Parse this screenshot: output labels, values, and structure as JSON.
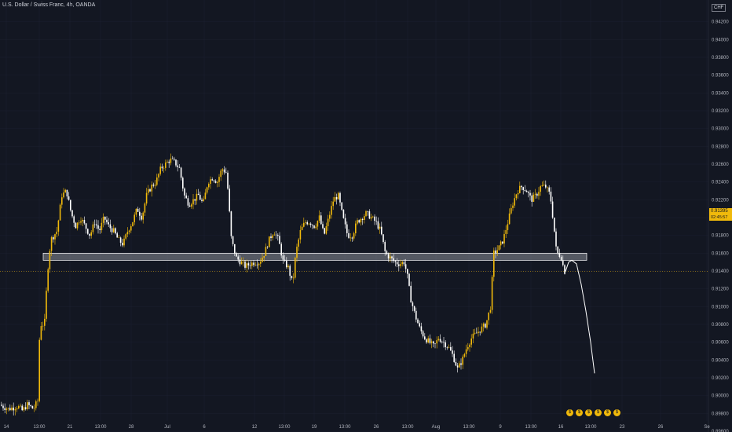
{
  "header": {
    "title": "U.S. Dollar / Swiss Franc, 4h, OANDA"
  },
  "axis": {
    "currency": "CHF"
  },
  "last_price": {
    "value": "0.91395",
    "countdown": "02:45:57"
  },
  "colors": {
    "bg": "#131722",
    "up": "#f0b90b",
    "down": "#ffffff",
    "grid": "#1c2030",
    "zone_fill": "#d1d4dc",
    "zone_stroke": "#ffffff"
  },
  "chart_data": {
    "type": "candlestick",
    "ylim": [
      0.896,
      0.944
    ],
    "y_ticks": [
      0.942,
      0.94,
      0.938,
      0.936,
      0.934,
      0.932,
      0.93,
      0.928,
      0.926,
      0.924,
      0.922,
      0.92,
      0.918,
      0.916,
      0.914,
      0.912,
      0.91,
      0.908,
      0.906,
      0.904,
      0.902,
      0.9,
      0.898,
      0.896
    ],
    "x_ticks": [
      "14",
      "13:00",
      "21",
      "13:00",
      "28",
      "Jul",
      "6",
      "12",
      "13:00",
      "19",
      "13:00",
      "26",
      "13:00",
      "Aug",
      "13:00",
      "9",
      "13:00",
      "16",
      "13:00",
      "23",
      "26",
      "Se"
    ],
    "zone": {
      "from": 0.9152,
      "to": 0.916
    },
    "last_price": 0.91395,
    "anchors": [
      [
        0,
        0.899
      ],
      [
        12,
        0.8985
      ],
      [
        24,
        0.8988
      ],
      [
        30,
        0.8983
      ],
      [
        36,
        0.899
      ],
      [
        44,
        0.8985
      ],
      [
        50,
        0.8995
      ],
      [
        52,
        0.908
      ],
      [
        58,
        0.908
      ],
      [
        62,
        0.914
      ],
      [
        66,
        0.9175
      ],
      [
        74,
        0.9185
      ],
      [
        80,
        0.9225
      ],
      [
        86,
        0.923
      ],
      [
        92,
        0.9205
      ],
      [
        98,
        0.919
      ],
      [
        104,
        0.92
      ],
      [
        110,
        0.919
      ],
      [
        116,
        0.918
      ],
      [
        122,
        0.9195
      ],
      [
        128,
        0.9185
      ],
      [
        134,
        0.92
      ],
      [
        140,
        0.919
      ],
      [
        146,
        0.9185
      ],
      [
        152,
        0.9175
      ],
      [
        158,
        0.917
      ],
      [
        164,
        0.9185
      ],
      [
        170,
        0.9195
      ],
      [
        176,
        0.921
      ],
      [
        182,
        0.92
      ],
      [
        188,
        0.9225
      ],
      [
        194,
        0.9235
      ],
      [
        200,
        0.924
      ],
      [
        206,
        0.9255
      ],
      [
        212,
        0.926
      ],
      [
        218,
        0.9265
      ],
      [
        224,
        0.9262
      ],
      [
        230,
        0.9255
      ],
      [
        236,
        0.9225
      ],
      [
        242,
        0.9215
      ],
      [
        248,
        0.922
      ],
      [
        254,
        0.9225
      ],
      [
        260,
        0.9215
      ],
      [
        266,
        0.924
      ],
      [
        272,
        0.9245
      ],
      [
        278,
        0.924
      ],
      [
        284,
        0.9255
      ],
      [
        290,
        0.925
      ],
      [
        296,
        0.9175
      ],
      [
        302,
        0.9155
      ],
      [
        308,
        0.915
      ],
      [
        314,
        0.9145
      ],
      [
        320,
        0.9148
      ],
      [
        326,
        0.915
      ],
      [
        332,
        0.915
      ],
      [
        338,
        0.916
      ],
      [
        344,
        0.9175
      ],
      [
        350,
        0.9185
      ],
      [
        356,
        0.9175
      ],
      [
        362,
        0.915
      ],
      [
        368,
        0.9145
      ],
      [
        374,
        0.9125
      ],
      [
        378,
        0.916
      ],
      [
        384,
        0.9185
      ],
      [
        390,
        0.9195
      ],
      [
        396,
        0.9195
      ],
      [
        402,
        0.919
      ],
      [
        408,
        0.92
      ],
      [
        414,
        0.918
      ],
      [
        420,
        0.92
      ],
      [
        426,
        0.922
      ],
      [
        432,
        0.9225
      ],
      [
        438,
        0.92
      ],
      [
        444,
        0.918
      ],
      [
        450,
        0.918
      ],
      [
        456,
        0.9195
      ],
      [
        462,
        0.92
      ],
      [
        468,
        0.9205
      ],
      [
        474,
        0.92
      ],
      [
        480,
        0.9195
      ],
      [
        486,
        0.9185
      ],
      [
        492,
        0.916
      ],
      [
        498,
        0.9155
      ],
      [
        504,
        0.915
      ],
      [
        510,
        0.9148
      ],
      [
        516,
        0.915
      ],
      [
        520,
        0.9135
      ],
      [
        524,
        0.911
      ],
      [
        530,
        0.909
      ],
      [
        536,
        0.9075
      ],
      [
        542,
        0.9065
      ],
      [
        548,
        0.906
      ],
      [
        554,
        0.9055
      ],
      [
        560,
        0.9065
      ],
      [
        566,
        0.906
      ],
      [
        572,
        0.9055
      ],
      [
        578,
        0.9045
      ],
      [
        584,
        0.903
      ],
      [
        590,
        0.904
      ],
      [
        596,
        0.9055
      ],
      [
        602,
        0.9065
      ],
      [
        608,
        0.907
      ],
      [
        614,
        0.9075
      ],
      [
        620,
        0.908
      ],
      [
        626,
        0.91
      ],
      [
        630,
        0.916
      ],
      [
        636,
        0.9165
      ],
      [
        642,
        0.9175
      ],
      [
        648,
        0.9195
      ],
      [
        654,
        0.9215
      ],
      [
        660,
        0.923
      ],
      [
        666,
        0.9235
      ],
      [
        672,
        0.923
      ],
      [
        678,
        0.922
      ],
      [
        684,
        0.9225
      ],
      [
        690,
        0.9235
      ],
      [
        696,
        0.9235
      ],
      [
        702,
        0.9225
      ],
      [
        706,
        0.9195
      ],
      [
        710,
        0.916
      ],
      [
        714,
        0.9158
      ],
      [
        716,
        0.9155
      ],
      [
        720,
        0.91395
      ]
    ],
    "projection": [
      [
        720,
        0.91395
      ],
      [
        724,
        0.915
      ],
      [
        728,
        0.9152
      ],
      [
        734,
        0.9148
      ],
      [
        740,
        0.9125
      ],
      [
        746,
        0.9095
      ],
      [
        752,
        0.906
      ],
      [
        757,
        0.9025
      ]
    ]
  },
  "event_markers": [
    "$",
    "$",
    "$",
    "$",
    "$",
    "$"
  ]
}
